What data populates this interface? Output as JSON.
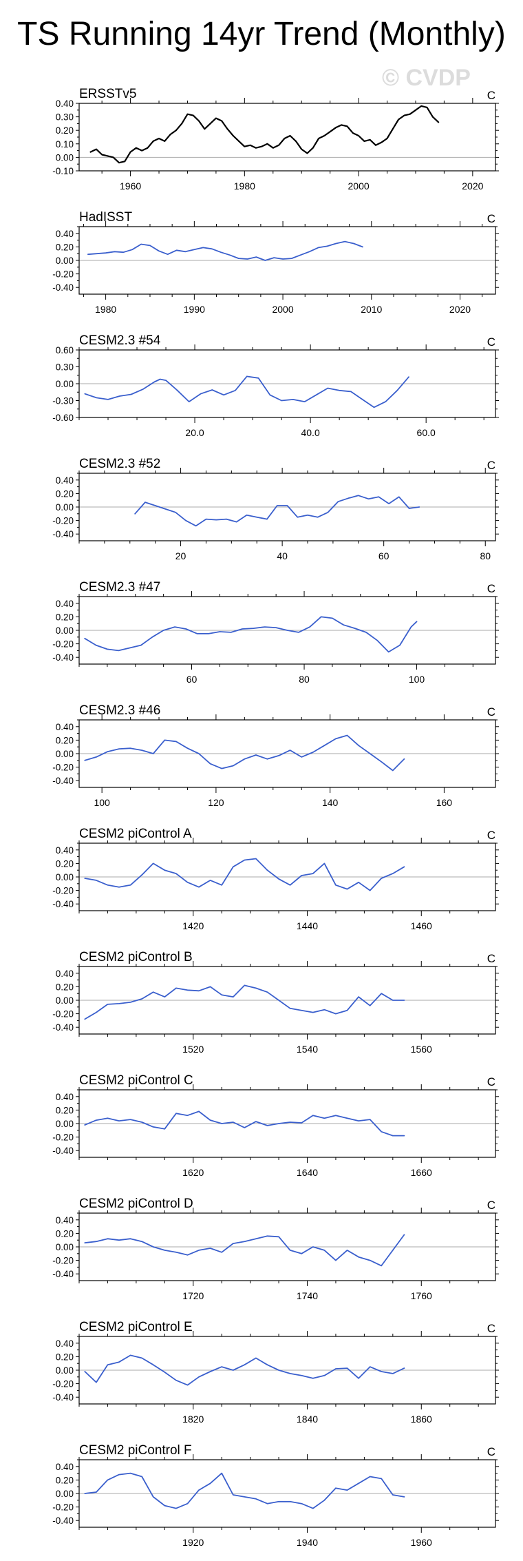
{
  "title": "TS Running 14yr Trend (Monthly)",
  "watermark": "© CVDP",
  "colors": {
    "obs": "#000000",
    "model": "#3a5fcd",
    "axis": "#000000",
    "zero": "#a9a9a9"
  },
  "chart_data": [
    {
      "type": "line",
      "title": "ERSSTv5",
      "unit": "C",
      "series_color": "obs",
      "xlim": [
        1951,
        2024
      ],
      "ylim": [
        -0.1,
        0.4
      ],
      "yticks": [
        -0.1,
        0.0,
        0.1,
        0.2,
        0.3,
        0.4
      ],
      "ytick_labels": [
        "-0.10",
        "0.00",
        "0.10",
        "0.20",
        "0.30",
        "0.40"
      ],
      "xticks": [
        1960,
        1980,
        2000,
        2020
      ],
      "xtick_labels": [
        "1960",
        "1980",
        "2000",
        "2020"
      ],
      "x": [
        1953,
        1954,
        1955,
        1956,
        1957,
        1958,
        1959,
        1960,
        1961,
        1962,
        1963,
        1964,
        1965,
        1966,
        1967,
        1968,
        1969,
        1970,
        1971,
        1972,
        1973,
        1974,
        1975,
        1976,
        1977,
        1978,
        1979,
        1980,
        1981,
        1982,
        1983,
        1984,
        1985,
        1986,
        1987,
        1988,
        1989,
        1990,
        1991,
        1992,
        1993,
        1994,
        1995,
        1996,
        1997,
        1998,
        1999,
        2000,
        2001,
        2002,
        2003,
        2004,
        2005,
        2006,
        2007,
        2008,
        2009,
        2010,
        2011,
        2012,
        2013,
        2014
      ],
      "y": [
        0.04,
        0.06,
        0.02,
        0.01,
        0.0,
        -0.04,
        -0.03,
        0.04,
        0.07,
        0.05,
        0.07,
        0.12,
        0.14,
        0.12,
        0.17,
        0.2,
        0.25,
        0.32,
        0.31,
        0.27,
        0.21,
        0.25,
        0.29,
        0.27,
        0.21,
        0.16,
        0.12,
        0.08,
        0.09,
        0.07,
        0.08,
        0.1,
        0.07,
        0.09,
        0.14,
        0.16,
        0.12,
        0.06,
        0.03,
        0.07,
        0.14,
        0.16,
        0.19,
        0.22,
        0.24,
        0.23,
        0.18,
        0.16,
        0.12,
        0.13,
        0.09,
        0.11,
        0.14,
        0.21,
        0.28,
        0.31,
        0.32,
        0.35,
        0.38,
        0.37,
        0.3,
        0.26
      ]
    },
    {
      "type": "line",
      "title": "HadISST",
      "unit": "C",
      "series_color": "model",
      "xlim": [
        1977,
        2024
      ],
      "ylim": [
        -0.5,
        0.5
      ],
      "yticks": [
        -0.4,
        -0.2,
        0.0,
        0.2,
        0.4
      ],
      "ytick_labels": [
        "-0.40",
        "-0.20",
        "0.00",
        "0.20",
        "0.40"
      ],
      "xticks": [
        1980,
        1990,
        2000,
        2010,
        2020
      ],
      "xtick_labels": [
        "1980",
        "1990",
        "2000",
        "2010",
        "2020"
      ],
      "x": [
        1978,
        1979,
        1980,
        1981,
        1982,
        1983,
        1984,
        1985,
        1986,
        1987,
        1988,
        1989,
        1990,
        1991,
        1992,
        1993,
        1994,
        1995,
        1996,
        1997,
        1998,
        1999,
        2000,
        2001,
        2002,
        2003,
        2004,
        2005,
        2006,
        2007,
        2008,
        2009
      ],
      "y": [
        0.09,
        0.1,
        0.11,
        0.13,
        0.12,
        0.16,
        0.24,
        0.22,
        0.14,
        0.09,
        0.15,
        0.13,
        0.16,
        0.19,
        0.17,
        0.12,
        0.08,
        0.03,
        0.02,
        0.05,
        0.0,
        0.04,
        0.02,
        0.03,
        0.08,
        0.13,
        0.19,
        0.21,
        0.25,
        0.28,
        0.25,
        0.2
      ]
    },
    {
      "type": "line",
      "title": "CESM2.3 #54",
      "unit": "C",
      "series_color": "model",
      "xlim": [
        0,
        72
      ],
      "ylim": [
        -0.6,
        0.6
      ],
      "yticks": [
        -0.6,
        -0.3,
        0.0,
        0.3,
        0.6
      ],
      "ytick_labels": [
        "-0.60",
        "-0.30",
        "0.00",
        "0.30",
        "0.60"
      ],
      "xticks": [
        20,
        40,
        60
      ],
      "xtick_labels": [
        "20.0",
        "40.0",
        "60.0"
      ],
      "x": [
        1,
        3,
        5,
        7,
        9,
        11,
        13,
        14,
        15,
        17,
        19,
        21,
        23,
        25,
        27,
        29,
        31,
        33,
        35,
        37,
        39,
        41,
        43,
        45,
        47,
        49,
        51,
        53,
        55,
        57
      ],
      "y": [
        -0.18,
        -0.25,
        -0.28,
        -0.22,
        -0.19,
        -0.1,
        0.03,
        0.08,
        0.06,
        -0.12,
        -0.32,
        -0.18,
        -0.11,
        -0.2,
        -0.12,
        0.13,
        0.1,
        -0.2,
        -0.3,
        -0.28,
        -0.32,
        -0.2,
        -0.08,
        -0.12,
        -0.14,
        -0.28,
        -0.42,
        -0.32,
        -0.12,
        0.12
      ]
    },
    {
      "type": "line",
      "title": "CESM2.3 #52",
      "unit": "C",
      "series_color": "model",
      "xlim": [
        0,
        82
      ],
      "ylim": [
        -0.5,
        0.5
      ],
      "yticks": [
        -0.4,
        -0.2,
        0.0,
        0.2,
        0.4
      ],
      "ytick_labels": [
        "-0.40",
        "-0.20",
        "0.00",
        "0.20",
        "0.40"
      ],
      "xticks": [
        20,
        40,
        60,
        80
      ],
      "xtick_labels": [
        "20",
        "40",
        "60",
        "80"
      ],
      "x": [
        11,
        13,
        15,
        17,
        19,
        21,
        23,
        25,
        27,
        29,
        31,
        33,
        35,
        37,
        39,
        41,
        43,
        45,
        47,
        49,
        51,
        53,
        55,
        57,
        59,
        61,
        63,
        65,
        67
      ],
      "y": [
        -0.1,
        0.07,
        0.02,
        -0.03,
        -0.08,
        -0.2,
        -0.28,
        -0.18,
        -0.19,
        -0.18,
        -0.22,
        -0.12,
        -0.15,
        -0.18,
        0.02,
        0.02,
        -0.15,
        -0.12,
        -0.15,
        -0.08,
        0.08,
        0.13,
        0.17,
        0.12,
        0.15,
        0.05,
        0.15,
        -0.02,
        0.0
      ]
    },
    {
      "type": "line",
      "title": "CESM2.3 #47",
      "unit": "C",
      "series_color": "model",
      "xlim": [
        40,
        114
      ],
      "ylim": [
        -0.5,
        0.5
      ],
      "yticks": [
        -0.4,
        -0.2,
        0.0,
        0.2,
        0.4
      ],
      "ytick_labels": [
        "-0.40",
        "-0.20",
        "0.00",
        "0.20",
        "0.40"
      ],
      "xticks": [
        60,
        80,
        100
      ],
      "xtick_labels": [
        "60",
        "80",
        "100"
      ],
      "x": [
        41,
        43,
        45,
        47,
        49,
        51,
        53,
        55,
        57,
        59,
        61,
        63,
        65,
        67,
        69,
        71,
        73,
        75,
        77,
        79,
        81,
        83,
        85,
        87,
        89,
        91,
        93,
        95,
        97,
        99,
        100
      ],
      "y": [
        -0.12,
        -0.22,
        -0.28,
        -0.3,
        -0.26,
        -0.22,
        -0.1,
        0.0,
        0.05,
        0.02,
        -0.05,
        -0.05,
        -0.02,
        -0.03,
        0.02,
        0.03,
        0.05,
        0.04,
        0.0,
        -0.03,
        0.05,
        0.2,
        0.18,
        0.08,
        0.03,
        -0.03,
        -0.15,
        -0.32,
        -0.22,
        0.05,
        0.13
      ]
    },
    {
      "type": "line",
      "title": "CESM2.3 #46",
      "unit": "C",
      "series_color": "model",
      "xlim": [
        96,
        169
      ],
      "ylim": [
        -0.5,
        0.5
      ],
      "yticks": [
        -0.4,
        -0.2,
        0.0,
        0.2,
        0.4
      ],
      "ytick_labels": [
        "-0.40",
        "-0.20",
        "0.00",
        "0.20",
        "0.40"
      ],
      "xticks": [
        100,
        120,
        140,
        160
      ],
      "xtick_labels": [
        "100",
        "120",
        "140",
        "160"
      ],
      "x": [
        97,
        99,
        101,
        103,
        105,
        107,
        109,
        111,
        113,
        115,
        117,
        119,
        121,
        123,
        125,
        127,
        129,
        131,
        133,
        135,
        137,
        139,
        141,
        143,
        145,
        147,
        149,
        151,
        153
      ],
      "y": [
        -0.1,
        -0.05,
        0.03,
        0.07,
        0.08,
        0.05,
        0.0,
        0.2,
        0.18,
        0.08,
        0.0,
        -0.15,
        -0.22,
        -0.18,
        -0.08,
        -0.02,
        -0.08,
        -0.03,
        0.05,
        -0.05,
        0.02,
        0.12,
        0.22,
        0.27,
        0.12,
        0.0,
        -0.12,
        -0.25,
        -0.08
      ]
    },
    {
      "type": "line",
      "title": "CESM2 piControl A",
      "unit": "C",
      "series_color": "model",
      "xlim": [
        1400,
        1473
      ],
      "ylim": [
        -0.5,
        0.5
      ],
      "yticks": [
        -0.4,
        -0.2,
        0.0,
        0.2,
        0.4
      ],
      "ytick_labels": [
        "-0.40",
        "-0.20",
        "0.00",
        "0.20",
        "0.40"
      ],
      "xticks": [
        1420,
        1440,
        1460
      ],
      "xtick_labels": [
        "1420",
        "1440",
        "1460"
      ],
      "x": [
        1401,
        1403,
        1405,
        1407,
        1409,
        1411,
        1413,
        1415,
        1417,
        1419,
        1421,
        1423,
        1425,
        1427,
        1429,
        1431,
        1433,
        1435,
        1437,
        1439,
        1441,
        1443,
        1445,
        1447,
        1449,
        1451,
        1453,
        1455,
        1457
      ],
      "y": [
        -0.02,
        -0.05,
        -0.12,
        -0.15,
        -0.12,
        0.03,
        0.2,
        0.1,
        0.05,
        -0.08,
        -0.15,
        -0.05,
        -0.12,
        0.15,
        0.25,
        0.27,
        0.1,
        -0.03,
        -0.12,
        0.02,
        0.05,
        0.2,
        -0.12,
        -0.18,
        -0.08,
        -0.2,
        -0.02,
        0.05,
        0.15
      ]
    },
    {
      "type": "line",
      "title": "CESM2 piControl B",
      "unit": "C",
      "series_color": "model",
      "xlim": [
        1500,
        1573
      ],
      "ylim": [
        -0.5,
        0.5
      ],
      "yticks": [
        -0.4,
        -0.2,
        0.0,
        0.2,
        0.4
      ],
      "ytick_labels": [
        "-0.40",
        "-0.20",
        "0.00",
        "0.20",
        "0.40"
      ],
      "xticks": [
        1520,
        1540,
        1560
      ],
      "xtick_labels": [
        "1520",
        "1540",
        "1560"
      ],
      "x": [
        1501,
        1503,
        1505,
        1507,
        1509,
        1511,
        1513,
        1515,
        1517,
        1519,
        1521,
        1523,
        1525,
        1527,
        1529,
        1531,
        1533,
        1535,
        1537,
        1539,
        1541,
        1543,
        1545,
        1547,
        1549,
        1551,
        1553,
        1555,
        1557
      ],
      "y": [
        -0.28,
        -0.18,
        -0.06,
        -0.05,
        -0.03,
        0.02,
        0.12,
        0.05,
        0.18,
        0.15,
        0.14,
        0.2,
        0.08,
        0.05,
        0.22,
        0.18,
        0.12,
        0.0,
        -0.12,
        -0.15,
        -0.18,
        -0.14,
        -0.2,
        -0.15,
        0.05,
        -0.08,
        0.1,
        0.0,
        0.0
      ]
    },
    {
      "type": "line",
      "title": "CESM2 piControl C",
      "unit": "C",
      "series_color": "model",
      "xlim": [
        1600,
        1673
      ],
      "ylim": [
        -0.5,
        0.5
      ],
      "yticks": [
        -0.4,
        -0.2,
        0.0,
        0.2,
        0.4
      ],
      "ytick_labels": [
        "-0.40",
        "-0.20",
        "0.00",
        "0.20",
        "0.40"
      ],
      "xticks": [
        1620,
        1640,
        1660
      ],
      "xtick_labels": [
        "1620",
        "1640",
        "1660"
      ],
      "x": [
        1601,
        1603,
        1605,
        1607,
        1609,
        1611,
        1613,
        1615,
        1617,
        1619,
        1621,
        1623,
        1625,
        1627,
        1629,
        1631,
        1633,
        1635,
        1637,
        1639,
        1641,
        1643,
        1645,
        1647,
        1649,
        1651,
        1653,
        1655,
        1657
      ],
      "y": [
        -0.02,
        0.05,
        0.08,
        0.04,
        0.06,
        0.02,
        -0.05,
        -0.08,
        0.15,
        0.12,
        0.18,
        0.05,
        0.0,
        0.02,
        -0.06,
        0.03,
        -0.03,
        0.0,
        0.02,
        0.01,
        0.12,
        0.08,
        0.12,
        0.08,
        0.04,
        0.06,
        -0.12,
        -0.18,
        -0.18
      ]
    },
    {
      "type": "line",
      "title": "CESM2 piControl D",
      "unit": "C",
      "series_color": "model",
      "xlim": [
        1700,
        1773
      ],
      "ylim": [
        -0.5,
        0.5
      ],
      "yticks": [
        -0.4,
        -0.2,
        0.0,
        0.2,
        0.4
      ],
      "ytick_labels": [
        "-0.40",
        "-0.20",
        "0.00",
        "0.20",
        "0.40"
      ],
      "xticks": [
        1720,
        1740,
        1760
      ],
      "xtick_labels": [
        "1720",
        "1740",
        "1760"
      ],
      "x": [
        1701,
        1703,
        1705,
        1707,
        1709,
        1711,
        1713,
        1715,
        1717,
        1719,
        1721,
        1723,
        1725,
        1727,
        1729,
        1731,
        1733,
        1735,
        1737,
        1739,
        1741,
        1743,
        1745,
        1747,
        1749,
        1751,
        1753,
        1755,
        1757
      ],
      "y": [
        0.06,
        0.08,
        0.12,
        0.1,
        0.12,
        0.08,
        0.0,
        -0.05,
        -0.08,
        -0.12,
        -0.05,
        -0.02,
        -0.08,
        0.05,
        0.08,
        0.12,
        0.16,
        0.15,
        -0.05,
        -0.1,
        0.0,
        -0.05,
        -0.2,
        -0.05,
        -0.15,
        -0.2,
        -0.28,
        -0.05,
        0.18
      ]
    },
    {
      "type": "line",
      "title": "CESM2 piControl E",
      "unit": "C",
      "series_color": "model",
      "xlim": [
        1800,
        1873
      ],
      "ylim": [
        -0.5,
        0.5
      ],
      "yticks": [
        -0.4,
        -0.2,
        0.0,
        0.2,
        0.4
      ],
      "ytick_labels": [
        "-0.40",
        "-0.20",
        "0.00",
        "0.20",
        "0.40"
      ],
      "xticks": [
        1820,
        1840,
        1860
      ],
      "xtick_labels": [
        "1820",
        "1840",
        "1860"
      ],
      "x": [
        1801,
        1803,
        1805,
        1807,
        1809,
        1811,
        1813,
        1815,
        1817,
        1819,
        1821,
        1823,
        1825,
        1827,
        1829,
        1831,
        1833,
        1835,
        1837,
        1839,
        1841,
        1843,
        1845,
        1847,
        1849,
        1851,
        1853,
        1855,
        1857
      ],
      "y": [
        -0.02,
        -0.18,
        0.08,
        0.12,
        0.22,
        0.18,
        0.08,
        -0.03,
        -0.15,
        -0.22,
        -0.1,
        -0.02,
        0.05,
        0.0,
        0.08,
        0.18,
        0.08,
        0.0,
        -0.05,
        -0.08,
        -0.12,
        -0.08,
        0.02,
        0.03,
        -0.12,
        0.05,
        -0.02,
        -0.05,
        0.03
      ]
    },
    {
      "type": "line",
      "title": "CESM2 piControl F",
      "unit": "C",
      "series_color": "model",
      "xlim": [
        1900,
        1973
      ],
      "ylim": [
        -0.5,
        0.5
      ],
      "yticks": [
        -0.4,
        -0.2,
        0.0,
        0.2,
        0.4
      ],
      "ytick_labels": [
        "-0.40",
        "-0.20",
        "0.00",
        "0.20",
        "0.40"
      ],
      "xticks": [
        1920,
        1940,
        1960
      ],
      "xtick_labels": [
        "1920",
        "1940",
        "1960"
      ],
      "x": [
        1901,
        1903,
        1905,
        1907,
        1909,
        1911,
        1913,
        1915,
        1917,
        1919,
        1921,
        1923,
        1925,
        1927,
        1929,
        1931,
        1933,
        1935,
        1937,
        1939,
        1941,
        1943,
        1945,
        1947,
        1949,
        1951,
        1953,
        1955,
        1957
      ],
      "y": [
        0.0,
        0.02,
        0.2,
        0.28,
        0.3,
        0.25,
        -0.05,
        -0.18,
        -0.22,
        -0.15,
        0.05,
        0.15,
        0.3,
        -0.02,
        -0.05,
        -0.08,
        -0.15,
        -0.12,
        -0.12,
        -0.15,
        -0.22,
        -0.1,
        0.08,
        0.05,
        0.15,
        0.25,
        0.22,
        -0.02,
        -0.05
      ]
    }
  ]
}
